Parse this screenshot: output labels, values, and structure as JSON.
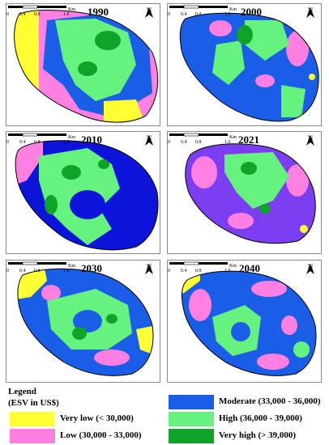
{
  "colors": {
    "very_low": "#ffff33",
    "low": "#ff80e0",
    "moderate": "#1a5ee8",
    "moderate_2010": "#0b14d8",
    "moderate_2021": "#7b3ef0",
    "high": "#66f27e",
    "very_high": "#0fa32a"
  },
  "maps": [
    {
      "year": "1990"
    },
    {
      "year": "2000"
    },
    {
      "year": "2010"
    },
    {
      "year": "2021"
    },
    {
      "year": "2030"
    },
    {
      "year": "2040"
    }
  ],
  "north_label": "N",
  "scale": {
    "ticks": [
      "0",
      "0.4",
      "0.8",
      "1.6"
    ],
    "unit": "Km"
  },
  "legend": {
    "title_line1": "Legend",
    "title_line2": "(ESV in US$)",
    "items": [
      {
        "label": "Very low (< 30,000)",
        "color": "#ffff33"
      },
      {
        "label": "Low (30,000 - 33,000)",
        "color": "#ff80e0"
      },
      {
        "label": "Moderate (33,000 - 36,000)",
        "color": "#1a5ee8"
      },
      {
        "label": "High (36,000 - 39,000)",
        "color": "#66f27e"
      },
      {
        "label": "Very high (> 39,000)",
        "color": "#0fa32a"
      }
    ]
  }
}
